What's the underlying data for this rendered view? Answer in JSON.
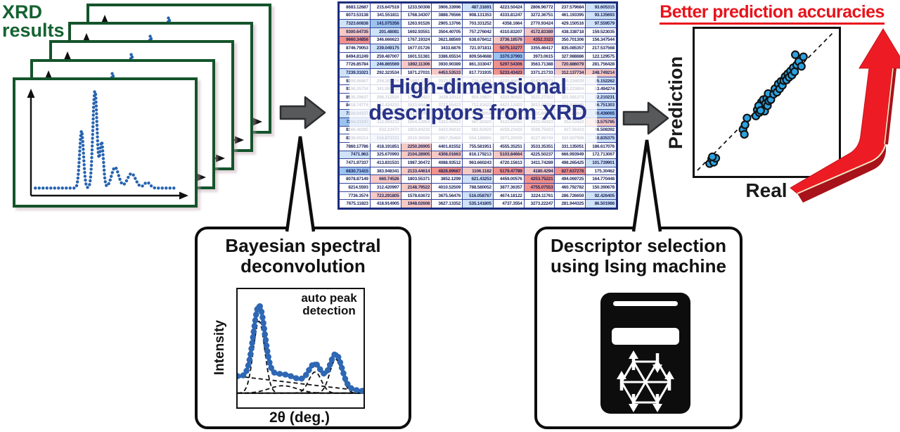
{
  "labels": {
    "xrd_line1": "XRD",
    "xrd_line2": "results",
    "table_title_line1": "High-dimensional",
    "table_title_line2": "descriptors from XRD",
    "better_prediction": "Better prediction accuracies",
    "prediction": "Prediction",
    "real": "Real",
    "bayes_line1": "Bayesian spectral",
    "bayes_line2": "deconvolution",
    "auto_peak_line1": "auto peak",
    "auto_peak_line2": "detection",
    "intensity": "Intensity",
    "two_theta": "2θ (deg.)",
    "ising_line1": "Descriptor selection",
    "ising_line2": "using Ising machine"
  },
  "colors": {
    "green": "#156231",
    "navy_border": "#1b2d7d",
    "navy_text": "#283389",
    "red": "#e8131b",
    "red_arrow": "#ed1c24",
    "red_arrow_dark": "#a8121a",
    "gray_arrow": "#58595b",
    "xrd_dot_blue": "#2663b0",
    "scatter_dot_blue": "#2ba2e0",
    "bayes_curve_blue": "#2e67b3"
  },
  "chart_data": [
    {
      "id": "xrd_spectra",
      "type": "line",
      "title": "XRD results",
      "panels": 5,
      "xlabel": "",
      "ylabel": "",
      "baseline": 0.045,
      "peaks": [
        {
          "c": 0.33,
          "h": 0.55,
          "w": 0.013
        },
        {
          "c": 0.42,
          "h": 0.95,
          "w": 0.014
        },
        {
          "c": 0.465,
          "h": 0.44,
          "w": 0.012
        },
        {
          "c": 0.555,
          "h": 0.2,
          "w": 0.024
        },
        {
          "c": 0.665,
          "h": 0.14,
          "w": 0.028
        },
        {
          "c": 0.77,
          "h": 0.055,
          "w": 0.02
        }
      ]
    },
    {
      "id": "descriptor_table",
      "type": "table",
      "title": "High-dimensional descriptors from XRD",
      "legend": {
        "w": "#ffffff",
        "b": "#cfe3f8",
        "B": "#9cc3ef",
        "r": "#f6c9c4",
        "R": "#f0918b"
      },
      "rows": [
        [
          "8683.12687",
          "215.647519",
          "1233.50308",
          "3906.33996",
          "487.31691",
          "4223.50424",
          "2806.96772",
          "237.579684",
          "93.605315"
        ],
        [
          "8073.53138",
          "341.551811",
          "1768.34307",
          "3888.76566",
          "908.131353",
          "4333.81247",
          "3272.36751",
          "461.193395",
          "93.135693"
        ],
        [
          "7323.60838",
          "141.075356",
          "1263.91526",
          "2905.13766",
          "703.331252",
          "4358.1664",
          "2770.93424",
          "429.150516",
          "97.559579"
        ],
        [
          "9300.64735",
          "201.48081",
          "1692.93551",
          "3504.40705",
          "757.276042",
          "4310.83207",
          "4172.83389",
          "438.338718",
          "159.523035"
        ],
        [
          "9660.34856",
          "346.666623",
          "1767.19324",
          "3621.88569",
          "638.678412",
          "3736.18576",
          "4352.3323",
          "350.701306",
          "156.347544"
        ],
        [
          "8746.79053",
          "239.049175",
          "1677.01726",
          "3433.6876",
          "721.971811",
          "5075.10277",
          "3355.46417",
          "835.085357",
          "217.537568"
        ],
        [
          "8494.81249",
          "259.487007",
          "1601.51381",
          "3386.65534",
          "809.564688",
          "3370.37993",
          "3973.0615",
          "327.988886",
          "122.129575"
        ],
        [
          "7726.85784",
          "246.865569",
          "1892.11306",
          "3930.90389",
          "861.333047",
          "5297.54306",
          "3563.71388",
          "720.886079",
          "281.756428"
        ],
        [
          "7239.31021",
          "292.323534",
          "1871.27031",
          "4453.53533",
          "817.731935",
          "5233.43423",
          "3371.21733",
          "312.137734",
          "248.749214"
        ],
        [
          "9309.46867",
          "259.302078",
          "1697.3382",
          "3533.05692",
          "725.87921",
          "4233.46876",
          "4142.69973",
          "430.234029",
          "35.152262"
        ],
        [
          "9198.35734",
          "341.051731",
          "1876.06977",
          "3556.49179",
          "559.940087",
          "4651.27725",
          "4031.49873",
          "383.223804",
          "83.494274"
        ],
        [
          "8535.29637",
          "298.312534",
          "1754.20423",
          "3428.23113",
          "654.29823",
          "4323.90423",
          "3521.27323",
          "321.081273",
          "32.210231"
        ],
        [
          "8418.74774",
          "332.424233",
          "1823.94423",
          "3723.55423",
          "712.83423",
          "4423.12423",
          "3813.92336",
          "313.923365",
          "16.751303"
        ],
        [
          "7328.04157",
          "1003.15394",
          "1237.3490",
          "2977.54123",
          "506.59354",
          "3792.22842",
          "2631.84533",
          "497.23843",
          "90.436065"
        ],
        [
          "7254.31197",
          "312.934233",
          "1654.23953",
          "3323.49423",
          "587.92423",
          "4123.53423",
          "3421.99423",
          "352.53423",
          "53.575785"
        ],
        [
          "8166.48285",
          "632.23473",
          "1803.84232",
          "3423.94232",
          "682.63423",
          "4259.23423",
          "3598.75423",
          "427.56423",
          "46.508392"
        ],
        [
          "8338.00214",
          "516.873721",
          "2010.36556",
          "3657.25484",
          "554.188865",
          "3973.20059",
          "4127.06743",
          "324.507908",
          "10.835375"
        ],
        [
          "7860.17786",
          "418.191851",
          "2250.26905",
          "4401.81552",
          "755.581951",
          "4555.35251",
          "3533.35351",
          "331.135051",
          "186.617076"
        ],
        [
          "7471.963",
          "325.670993",
          "2104.28905",
          "4308.01663",
          "816.179213",
          "5103.84664",
          "4225.50237",
          "666.993949",
          "172.713067"
        ],
        [
          "7471.97337",
          "413.831531",
          "1987.30472",
          "4088.93512",
          "963.660243",
          "4720.15613",
          "3411.74289",
          "498.265425",
          "101.739901"
        ],
        [
          "6830.71415",
          "383.948341",
          "2133.44614",
          "4828.89687",
          "1106.1182",
          "5179.47789",
          "4180.4294",
          "827.637278",
          "175.30462"
        ],
        [
          "8078.87149",
          "660.74526",
          "1803.55371",
          "3852.1299",
          "621.43253",
          "4459.00576",
          "4253.75221",
          "494.069725",
          "164.770448"
        ],
        [
          "8214.5593",
          "312.420997",
          "2148.79522",
          "4010.52509",
          "788.580052",
          "3877.36357",
          "4755.07553",
          "460.792782",
          "150.390678"
        ],
        [
          "7736.3574",
          "723.291805",
          "1578.63672",
          "3675.56476",
          "516.058767",
          "4674.18122",
          "3224.11761",
          "286.726659",
          "92.426405"
        ],
        [
          "7675.11823",
          "418.914905",
          "1948.02608",
          "3627.13352",
          "535.141805",
          "4737.3554",
          "3273.22247",
          "281.944325",
          "86.501986"
        ]
      ],
      "highlights": [
        "wwwwbwwwb",
        "wwwwwwwwb",
        "bBwwwwwwb",
        "rbwwwwrww",
        "RwwwwrRww",
        "wbwwwRwww",
        "wwwwwBwww",
        "wbrwwRwrw",
        "bwwrwRwrr",
        "wwwwwwwwb",
        "wwwwwwwww",
        "wwwwwwwwb",
        "wwwwwwwwb",
        "bwwwwwwwB",
        "Bwwwwwwwr",
        "wwwwwwwww",
        "wbwwwwwwb",
        "wwrwwwwww",
        "bwrrwrwww",
        "wwwwwwwwb",
        "BwrRrRrRw",
        "wrwwbwRww",
        "wwrwwwRww",
        "wrwwbwwwb",
        "wwrwbwwwb"
      ]
    },
    {
      "id": "prediction_scatter",
      "type": "scatter",
      "title": "Better prediction accuracies",
      "xlabel": "Real",
      "ylabel": "Prediction",
      "diagonal": true,
      "xlim": [
        0,
        1
      ],
      "ylim": [
        0,
        1
      ],
      "points": [
        [
          0.08,
          0.05
        ],
        [
          0.095,
          0.085
        ],
        [
          0.11,
          0.06
        ],
        [
          0.125,
          0.09
        ],
        [
          0.1,
          0.1
        ],
        [
          0.325,
          0.3
        ],
        [
          0.34,
          0.335
        ],
        [
          0.355,
          0.385
        ],
        [
          0.335,
          0.265
        ],
        [
          0.42,
          0.4
        ],
        [
          0.43,
          0.445
        ],
        [
          0.445,
          0.425
        ],
        [
          0.45,
          0.47
        ],
        [
          0.46,
          0.5
        ],
        [
          0.47,
          0.455
        ],
        [
          0.475,
          0.52
        ],
        [
          0.485,
          0.435
        ],
        [
          0.49,
          0.49
        ],
        [
          0.5,
          0.53
        ],
        [
          0.505,
          0.475
        ],
        [
          0.515,
          0.51
        ],
        [
          0.52,
          0.555
        ],
        [
          0.53,
          0.52
        ],
        [
          0.44,
          0.475
        ],
        [
          0.455,
          0.44
        ],
        [
          0.51,
          0.565
        ],
        [
          0.55,
          0.56
        ],
        [
          0.56,
          0.6
        ],
        [
          0.575,
          0.575
        ],
        [
          0.585,
          0.635
        ],
        [
          0.595,
          0.6
        ],
        [
          0.605,
          0.655
        ],
        [
          0.615,
          0.625
        ],
        [
          0.625,
          0.66
        ],
        [
          0.635,
          0.69
        ],
        [
          0.645,
          0.665
        ],
        [
          0.655,
          0.71
        ],
        [
          0.665,
          0.685
        ],
        [
          0.675,
          0.73
        ],
        [
          0.685,
          0.7
        ],
        [
          0.695,
          0.755
        ],
        [
          0.705,
          0.725
        ],
        [
          0.72,
          0.775
        ],
        [
          0.735,
          0.8
        ],
        [
          0.71,
          0.85
        ],
        [
          0.77,
          0.835
        ],
        [
          0.755,
          0.765
        ]
      ]
    },
    {
      "id": "bayesian_deconvolution",
      "type": "line",
      "title": "Bayesian spectral deconvolution",
      "xlabel": "2θ (deg.)",
      "ylabel": "Intensity",
      "annotation": "auto peak detection",
      "baseline": 0.055,
      "background": {
        "start": 0.16,
        "end": 0.02
      },
      "components": [
        {
          "c": 0.17,
          "h": 0.68,
          "w": 0.045
        },
        {
          "c": 0.36,
          "h": 0.07,
          "w": 0.11
        },
        {
          "c": 0.615,
          "h": 0.2,
          "w": 0.05
        },
        {
          "c": 0.78,
          "h": 0.32,
          "w": 0.048
        }
      ]
    }
  ]
}
